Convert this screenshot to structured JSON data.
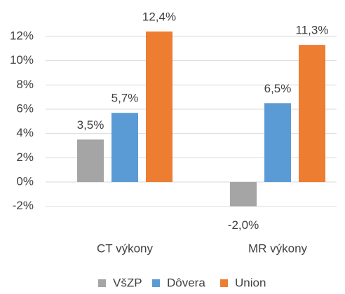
{
  "chart_data": {
    "type": "bar",
    "categories": [
      "CT výkony",
      "MR výkony"
    ],
    "series": [
      {
        "name": "VšZP",
        "color": "#a5a5a5",
        "values": [
          3.5,
          -2.0
        ],
        "value_labels": [
          "3,5%",
          "-2,0%"
        ]
      },
      {
        "name": "Dôvera",
        "color": "#5b9bd5",
        "values": [
          5.7,
          6.5
        ],
        "value_labels": [
          "5,7%",
          "6,5%"
        ]
      },
      {
        "name": "Union",
        "color": "#ed7d31",
        "values": [
          12.4,
          11.3
        ],
        "value_labels": [
          "12,4%",
          "11,3%"
        ]
      }
    ],
    "ylim": [
      -2,
      14
    ],
    "yticks": [
      {
        "value": -2,
        "label": "-2%"
      },
      {
        "value": 0,
        "label": "0%"
      },
      {
        "value": 2,
        "label": "2%"
      },
      {
        "value": 4,
        "label": "4%"
      },
      {
        "value": 6,
        "label": "6%"
      },
      {
        "value": 8,
        "label": "8%"
      },
      {
        "value": 10,
        "label": "10%"
      },
      {
        "value": 12,
        "label": "12%"
      }
    ],
    "grid": true,
    "legend": "bottom"
  }
}
